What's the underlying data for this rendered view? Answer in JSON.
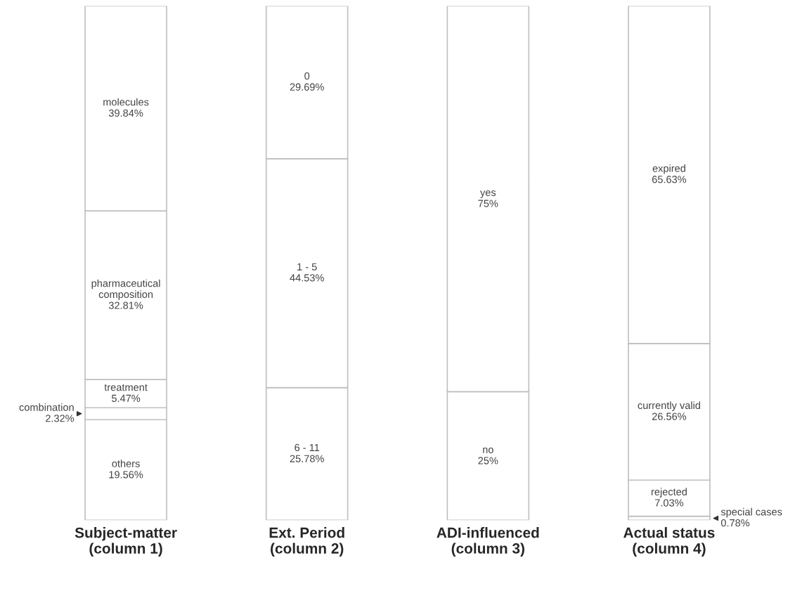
{
  "chart_data": {
    "type": "bar",
    "stacked": true,
    "data_labels": false,
    "legend": false,
    "tick_labels": "x",
    "categories": [
      "Subject-matter\n(column 1)",
      "Ext. Period\n(column 2)",
      "ADI-influenced\n(column 3)",
      "Actual status\n(column 4)"
    ],
    "series": [
      {
        "name": "others",
        "color": "#ffffff",
        "values": [
          19.56,
          null,
          null,
          null
        ],
        "value_labels": [
          "19.56%",
          null,
          null,
          null
        ]
      },
      {
        "name": "combination",
        "color": "#ffffff",
        "values": [
          2.32,
          null,
          null,
          null
        ],
        "value_labels": [
          "2.32%",
          null,
          null,
          null
        ]
      },
      {
        "name": "treatment",
        "color": "#ffffff",
        "values": [
          5.47,
          null,
          null,
          null
        ],
        "value_labels": [
          "5.47%",
          null,
          null,
          null
        ]
      },
      {
        "name": "pharmaceutical\ncomposition",
        "color": "#ffffff",
        "values": [
          32.81,
          null,
          null,
          null
        ],
        "value_labels": [
          "32.81%",
          null,
          null,
          null
        ]
      },
      {
        "name": "molecules",
        "color": "#ffffff",
        "values": [
          39.84,
          null,
          null,
          null
        ],
        "value_labels": [
          "39.84%",
          null,
          null,
          null
        ]
      },
      {
        "name": "6 - 11",
        "color": "#ffffff",
        "values": [
          null,
          25.78,
          null,
          null
        ],
        "value_labels": [
          null,
          "25.78%",
          null,
          null
        ]
      },
      {
        "name": "1 - 5",
        "color": "#ffffff",
        "values": [
          null,
          44.53,
          null,
          null
        ],
        "value_labels": [
          null,
          "44.53%",
          null,
          null
        ]
      },
      {
        "name": "0",
        "color": "#ffffff",
        "values": [
          null,
          29.69,
          null,
          null
        ],
        "value_labels": [
          null,
          "29.69%",
          null,
          null
        ]
      },
      {
        "name": "no",
        "color": "#ffffff",
        "values": [
          null,
          null,
          25,
          null
        ],
        "value_labels": [
          null,
          null,
          "25%",
          null
        ]
      },
      {
        "name": "yes",
        "color": "#ffffff",
        "values": [
          null,
          null,
          75,
          null
        ],
        "value_labels": [
          null,
          null,
          "75%",
          null
        ]
      },
      {
        "name": "special cases",
        "color": "#ffffff",
        "values": [
          null,
          null,
          null,
          0.78
        ],
        "value_labels": [
          null,
          null,
          null,
          "0.78%"
        ]
      },
      {
        "name": "rejected",
        "color": "#ffffff",
        "values": [
          null,
          null,
          null,
          7.03
        ],
        "value_labels": [
          null,
          null,
          null,
          "7.03%"
        ]
      },
      {
        "name": "currently valid",
        "color": "#ffffff",
        "values": [
          null,
          null,
          null,
          26.56
        ],
        "value_labels": [
          null,
          null,
          null,
          "26.56%"
        ]
      },
      {
        "name": "expired",
        "color": "#ffffff",
        "values": [
          null,
          null,
          null,
          65.63
        ],
        "value_labels": [
          null,
          null,
          null,
          "65.63%"
        ]
      }
    ]
  }
}
